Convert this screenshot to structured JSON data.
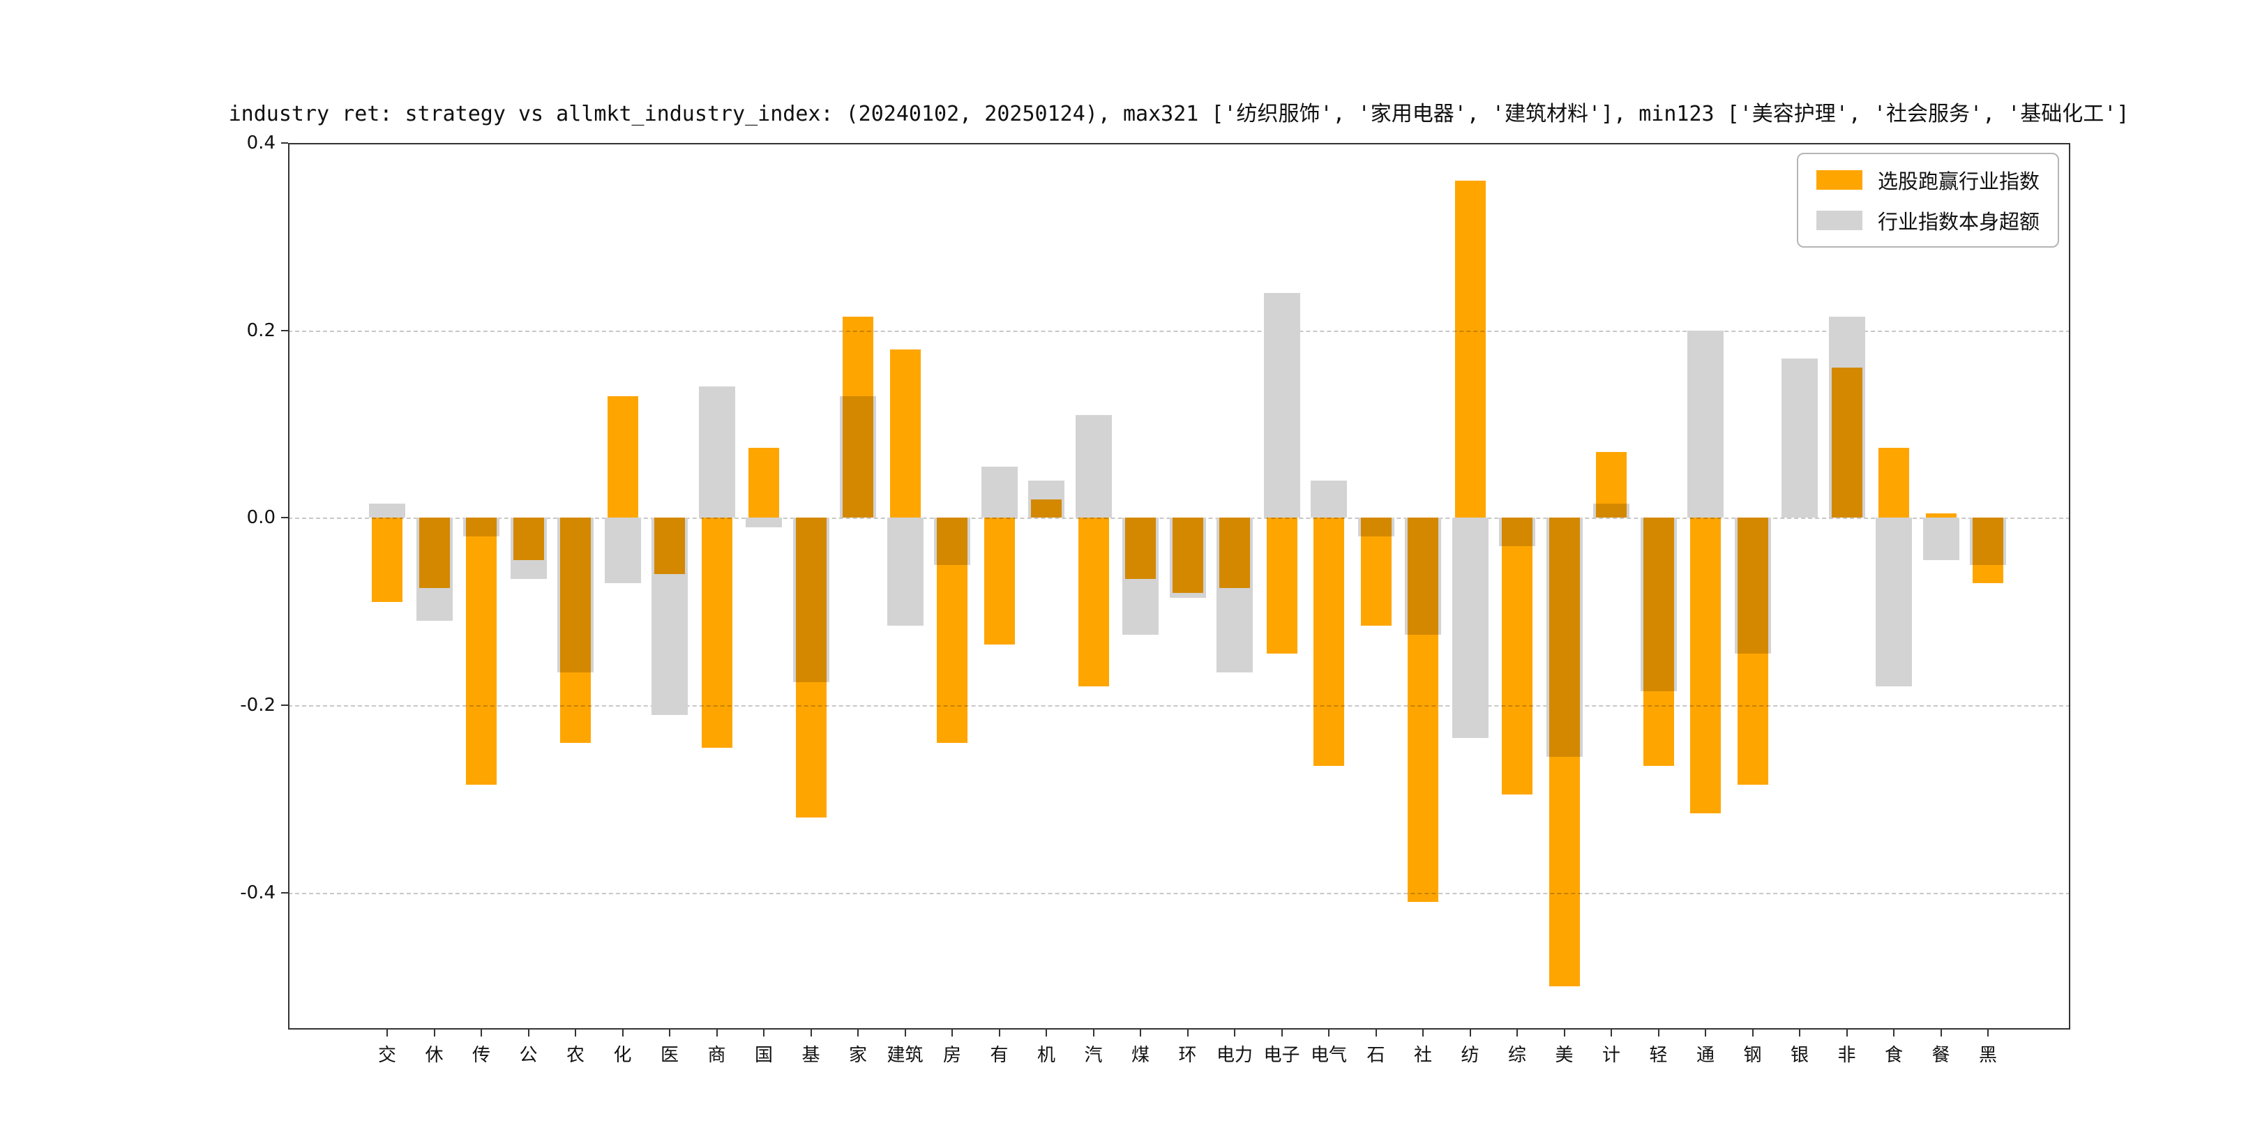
{
  "chart_data": {
    "type": "bar",
    "title": "industry ret: strategy vs allmkt_industry_index: (20240102, 20250124), max321 ['纺织服饰', '家用电器', '建筑材料'], min123 ['美容护理', '社会服务', '基础化工']",
    "categories": [
      "交",
      "休",
      "传",
      "公",
      "农",
      "化",
      "医",
      "商",
      "国",
      "基",
      "家",
      "建筑",
      "房",
      "有",
      "机",
      "汽",
      "煤",
      "环",
      "电力",
      "电子",
      "电气",
      "石",
      "社",
      "纺",
      "综",
      "美",
      "计",
      "轻",
      "通",
      "钢",
      "银",
      "非",
      "食",
      "餐",
      "黑"
    ],
    "series": [
      {
        "name": "选股跑赢行业指数",
        "color": "#FFA500",
        "values": [
          -0.09,
          -0.075,
          -0.285,
          -0.045,
          -0.24,
          0.13,
          -0.06,
          -0.245,
          0.075,
          -0.32,
          0.215,
          0.18,
          -0.24,
          -0.135,
          0.02,
          -0.18,
          -0.065,
          -0.08,
          -0.075,
          -0.145,
          -0.265,
          -0.115,
          -0.41,
          0.36,
          -0.295,
          -0.5,
          0.07,
          -0.265,
          -0.315,
          -0.285,
          0,
          0.16,
          0.075,
          0.005,
          -0.07
        ]
      },
      {
        "name": "行业指数本身超额",
        "color": "#D3D3D3",
        "values": [
          0.015,
          -0.11,
          -0.02,
          -0.065,
          -0.165,
          -0.07,
          -0.21,
          0.14,
          -0.01,
          -0.175,
          0.13,
          -0.115,
          -0.05,
          0.055,
          0.04,
          0.11,
          -0.125,
          -0.085,
          -0.165,
          0.24,
          0.04,
          -0.02,
          -0.125,
          -0.235,
          -0.03,
          -0.255,
          0.015,
          -0.185,
          0.2,
          -0.145,
          0.17,
          0.215,
          -0.18,
          -0.045,
          -0.05
        ]
      }
    ],
    "yticks": [
      {
        "value": 0.4,
        "label": "0.4"
      },
      {
        "value": 0.2,
        "label": "0.2"
      },
      {
        "value": 0.0,
        "label": "0.0"
      },
      {
        "value": -0.2,
        "label": "-0.2"
      },
      {
        "value": -0.4,
        "label": "-0.4"
      }
    ],
    "ylim": [
      -0.546,
      0.4
    ],
    "xlabel": "",
    "ylabel": "",
    "grid": "horizontal-dashed",
    "legend_position": "upper right"
  }
}
